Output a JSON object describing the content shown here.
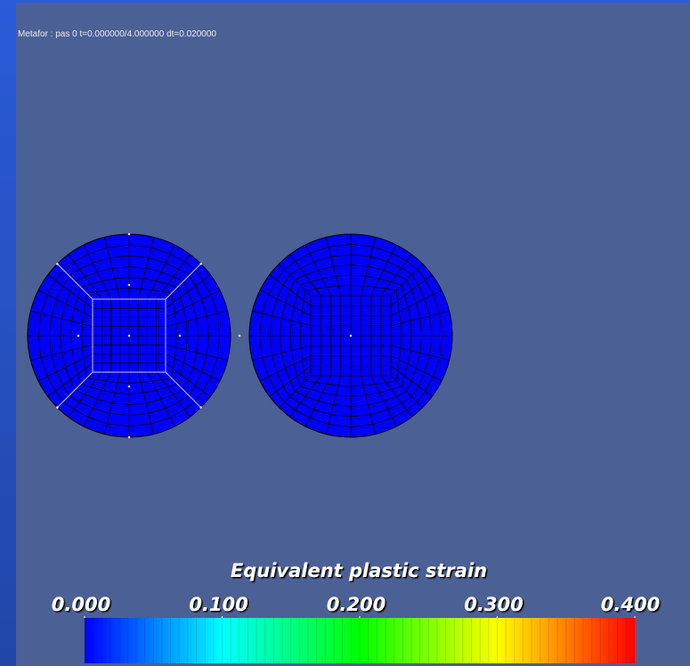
{
  "header": {
    "status": "Metafor : pas 0  t=0.000000/4.000000  dt=0.020000"
  },
  "colorbar": {
    "title": "Equivalent plastic strain",
    "range": [
      0,
      0.4
    ],
    "ticks": [
      {
        "value": 0,
        "label": "0.000"
      },
      {
        "value": 0.1,
        "label": "0.100"
      },
      {
        "value": 0.2,
        "label": "0.200"
      },
      {
        "value": 0.3,
        "label": "0.300"
      },
      {
        "value": 0.4,
        "label": "0.400"
      }
    ]
  }
}
